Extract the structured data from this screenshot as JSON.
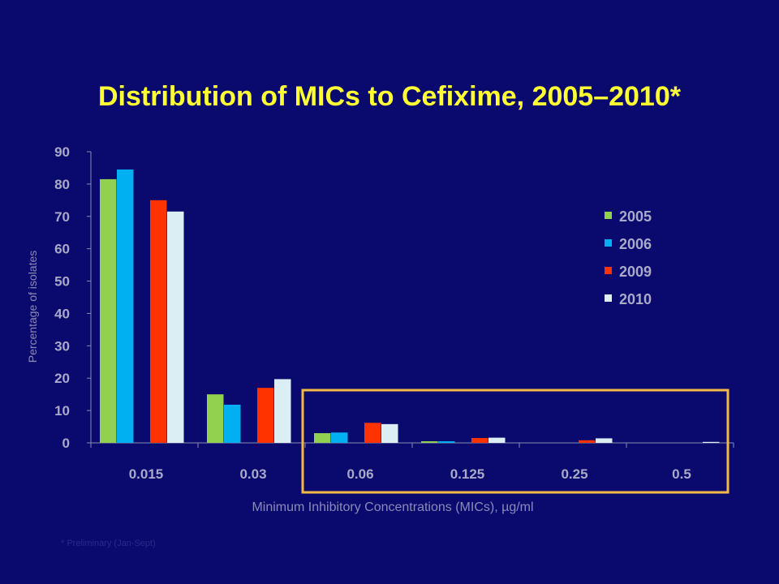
{
  "chart_data": {
    "type": "bar",
    "title": "Distribution of MICs to Cefixime, 2005–2010*",
    "xlabel": "Minimum Inhibitory Concentrations (MICs),  µg/ml",
    "ylabel": "Percentage of isolates",
    "footnote": "* Preliminary (Jan-Sept)",
    "categories": [
      "0.015",
      "0.03",
      "0.06",
      "0.125",
      "0.25",
      "0.5"
    ],
    "ylim": [
      0,
      90
    ],
    "yticks": [
      "0",
      "10",
      "20",
      "30",
      "40",
      "50",
      "60",
      "70",
      "80",
      "90"
    ],
    "grid": false,
    "legend_position": "right",
    "series": [
      {
        "name": "2005",
        "color": "#92d050",
        "values": [
          81.5,
          15,
          3,
          0.5,
          0,
          0
        ]
      },
      {
        "name": "2006",
        "color": "#00b0f0",
        "values": [
          84.5,
          11.8,
          3.2,
          0.5,
          0,
          0
        ]
      },
      {
        "name": "2009",
        "color": "#ff3300",
        "values": [
          75,
          17,
          6.2,
          1.5,
          0.8,
          0
        ]
      },
      {
        "name": "2010",
        "color": "#daeef3",
        "values": [
          71.5,
          19.7,
          5.8,
          1.6,
          1.4,
          0.3
        ]
      }
    ],
    "highlight": {
      "from_category": "0.06",
      "to_category": "0.5",
      "color": "#f4b942"
    }
  }
}
